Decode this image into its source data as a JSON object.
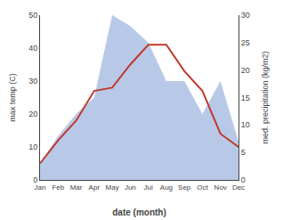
{
  "chart_data": {
    "type": "line",
    "categories": [
      "Jan",
      "Feb",
      "Mar",
      "Apr",
      "May",
      "Jun",
      "Jul",
      "Aug",
      "Sep",
      "Oct",
      "Nov",
      "Dec"
    ],
    "series": [
      {
        "type": "area",
        "color": "#b8c9e8",
        "axis": "y2",
        "values": [
          3,
          8,
          12,
          15,
          30,
          28,
          25,
          18,
          18,
          12,
          18,
          7
        ]
      },
      {
        "type": "line",
        "color": "#c0392b",
        "axis": "y",
        "values": [
          5,
          12,
          18,
          27,
          28,
          35,
          41,
          41,
          33,
          27,
          14,
          10
        ]
      }
    ],
    "xlabel": "date (month)",
    "ylabel": "max temp (C)",
    "y2label": "med. precipitation (kg/m2)",
    "ylim": [
      0,
      50
    ],
    "yticks": [
      0,
      10,
      20,
      30,
      40,
      50
    ],
    "y2lim": [
      0,
      30
    ],
    "y2ticks": [
      0,
      5,
      10,
      15,
      20,
      25,
      30
    ],
    "grid": false
  }
}
